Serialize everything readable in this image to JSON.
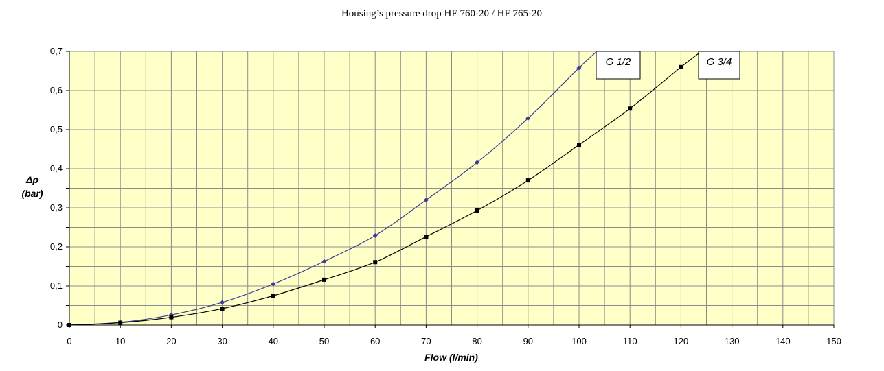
{
  "chart_data": {
    "type": "line",
    "title": "Housing’s pressure drop HF 760-20 / HF 765-20",
    "xlabel": "Flow (l/min)",
    "ylabel": "Δp",
    "ylabel_unit": "(bar)",
    "xlim": [
      0,
      150
    ],
    "ylim": [
      0,
      0.7
    ],
    "x_ticks": [
      "0",
      "10",
      "20",
      "30",
      "40",
      "50",
      "60",
      "70",
      "80",
      "90",
      "100",
      "110",
      "120",
      "130",
      "140",
      "150"
    ],
    "y_ticks": [
      "0",
      "0,1",
      "0,2",
      "0,3",
      "0,4",
      "0,5",
      "0,6",
      "0,7"
    ],
    "grid": true,
    "legend": "inline labels near line ends",
    "colors": {
      "plot_bg": "#FFFFC8",
      "grid": "#8C8C8C",
      "series1": "#3C3C96",
      "series2": "#000000"
    },
    "series": [
      {
        "name": "G 1/2",
        "marker": "diamond",
        "x": [
          0,
          10,
          20,
          30,
          40,
          50,
          60,
          70,
          80,
          90,
          100
        ],
        "y": [
          0,
          0.007,
          0.026,
          0.058,
          0.105,
          0.163,
          0.229,
          0.32,
          0.416,
          0.529,
          0.658
        ],
        "curve_end": [
          103.5,
          0.7
        ]
      },
      {
        "name": "G 3/4",
        "marker": "square",
        "x": [
          0,
          10,
          20,
          30,
          40,
          50,
          60,
          70,
          80,
          90,
          100,
          110,
          120
        ],
        "y": [
          0,
          0.006,
          0.02,
          0.042,
          0.075,
          0.116,
          0.161,
          0.226,
          0.293,
          0.37,
          0.461,
          0.554,
          0.66
        ],
        "curve_end": [
          124,
          0.7
        ]
      }
    ]
  }
}
